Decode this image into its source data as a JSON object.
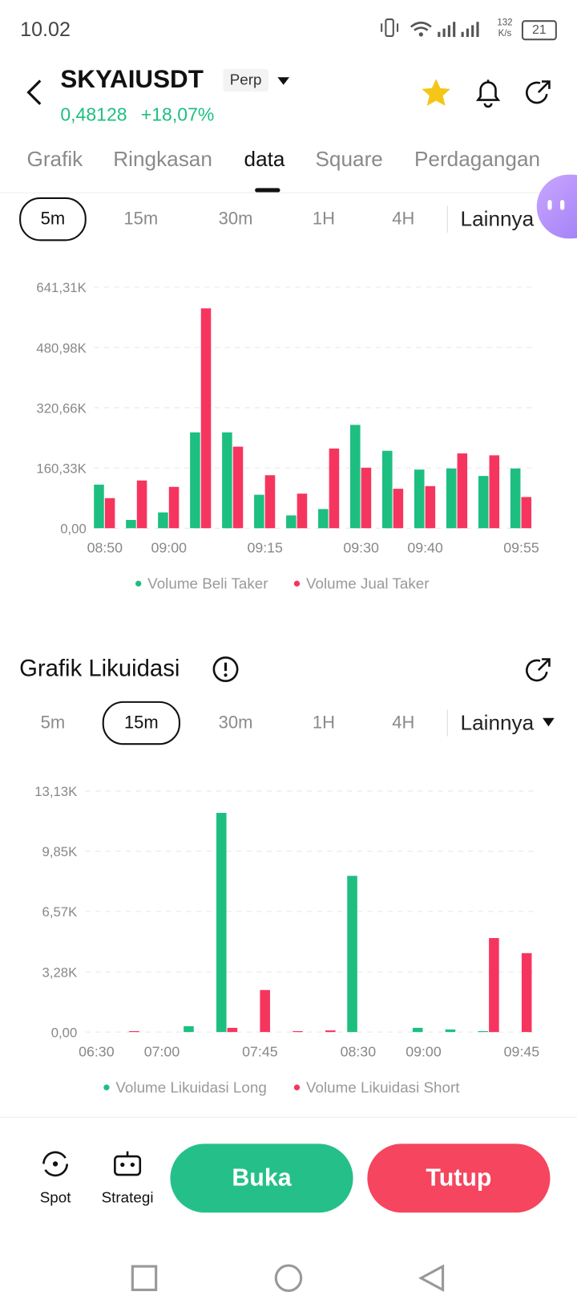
{
  "status": {
    "time": "10.02",
    "speed": "132",
    "speed_unit": "K/s",
    "battery": "21"
  },
  "header": {
    "symbol": "SKYAIUSDT",
    "badge": "Perp",
    "price": "0,48128",
    "change": "+18,07%"
  },
  "tabs": [
    "Grafik",
    "Ringkasan",
    "data",
    "Square",
    "Perdagangan"
  ],
  "intervals_top": [
    "5m",
    "15m",
    "30m",
    "1H",
    "4H",
    "Lainnya"
  ],
  "section_title": "Grafik Likuidasi",
  "intervals_liq": [
    "5m",
    "15m",
    "30m",
    "1H",
    "4H",
    "Lainnya"
  ],
  "bottom": {
    "spot": "Spot",
    "strategy": "Strategi",
    "open": "Buka",
    "close": "Tutup"
  },
  "chart_data": [
    {
      "type": "bar",
      "categories": [
        "08:50",
        null,
        "09:00",
        null,
        null,
        "09:15",
        null,
        null,
        "09:30",
        null,
        "09:40",
        null,
        null,
        "09:55"
      ],
      "series": [
        {
          "name": "Volume Beli Taker",
          "color": "#1dbf80",
          "values": [
            116000,
            22000,
            42000,
            255000,
            255000,
            89000,
            34000,
            51000,
            275000,
            206000,
            156000,
            159000,
            139000,
            159000
          ]
        },
        {
          "name": "Volume Jual Taker",
          "color": "#f6355f",
          "values": [
            80000,
            127000,
            110000,
            585000,
            217000,
            141000,
            92000,
            212000,
            161000,
            105000,
            112000,
            199000,
            194000,
            83000
          ]
        }
      ],
      "ylim": [
        0,
        641310
      ],
      "yticks": [
        {
          "value": 0,
          "label": "0,00"
        },
        {
          "value": 160330,
          "label": "160,33K"
        },
        {
          "value": 320660,
          "label": "320,66K"
        },
        {
          "value": 480980,
          "label": "480,98K"
        },
        {
          "value": 641310,
          "label": "641,31K"
        }
      ],
      "grid": true
    },
    {
      "type": "bar",
      "categories": [
        "06:30",
        null,
        "07:00",
        null,
        null,
        "07:45",
        null,
        null,
        "08:30",
        null,
        "09:00",
        null,
        null,
        "09:45"
      ],
      "series": [
        {
          "name": "Volume Likuidasi Long",
          "color": "#1dbf80",
          "values": [
            0,
            0,
            0,
            320,
            11940,
            0,
            0,
            0,
            8510,
            0,
            230,
            140,
            50,
            0
          ]
        },
        {
          "name": "Volume Likuidasi Short",
          "color": "#f6355f",
          "values": [
            0,
            50,
            0,
            0,
            230,
            2290,
            50,
            90,
            0,
            0,
            0,
            0,
            5120,
            4300
          ]
        }
      ],
      "ylim": [
        0,
        13130
      ],
      "yticks": [
        {
          "value": 0,
          "label": "0,00"
        },
        {
          "value": 3280,
          "label": "3,28K"
        },
        {
          "value": 6570,
          "label": "6,57K"
        },
        {
          "value": 9850,
          "label": "9,85K"
        },
        {
          "value": 13130,
          "label": "13,13K"
        }
      ],
      "grid": true
    }
  ]
}
